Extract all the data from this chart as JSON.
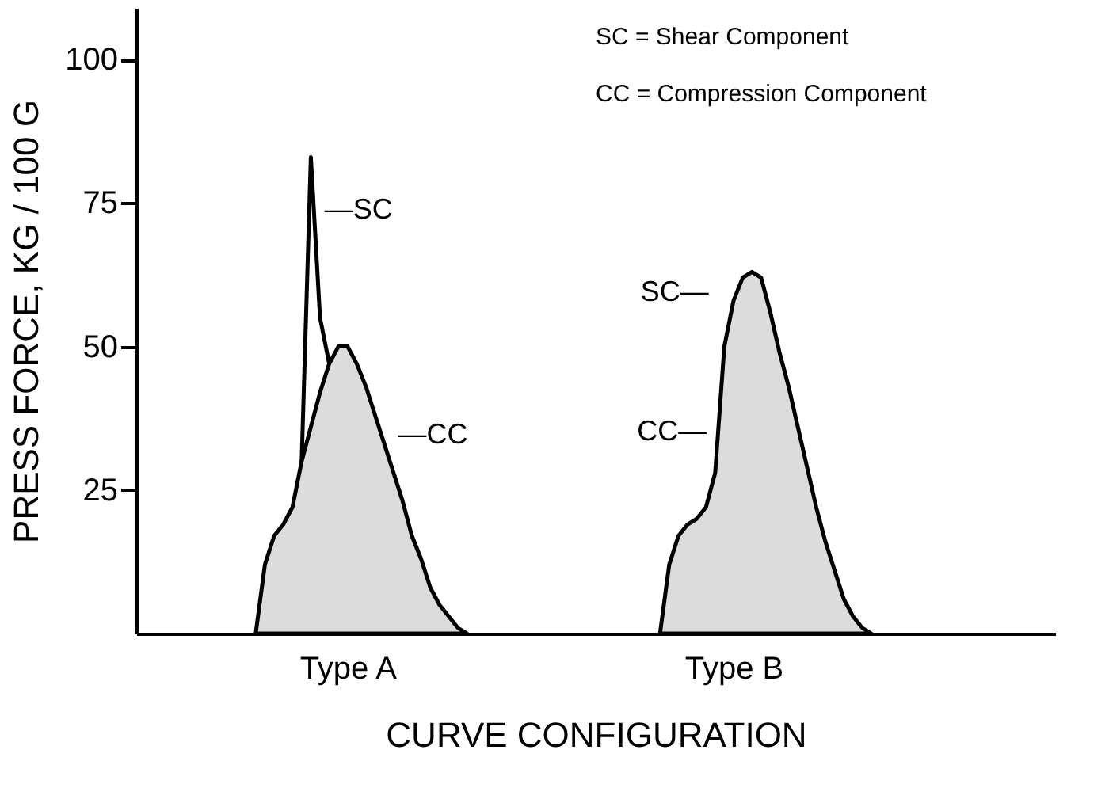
{
  "chart_data": {
    "type": "area",
    "xlabel": "CURVE CONFIGURATION",
    "ylabel": "PRESS FORCE, KG / 100 G",
    "categories": [
      null,
      null,
      null,
      null,
      null,
      null,
      null,
      null,
      null,
      null,
      null,
      null,
      null,
      null,
      null,
      null,
      null,
      null,
      null,
      null,
      null,
      null,
      null,
      "Type A",
      null,
      null,
      null,
      null,
      null,
      null,
      null,
      null,
      null,
      null,
      null,
      null,
      null,
      null,
      null,
      null,
      null,
      null,
      null,
      null,
      null,
      null,
      null,
      null,
      null,
      null,
      null,
      null,
      null,
      null,
      null,
      null,
      null,
      null,
      null,
      null,
      null,
      null,
      null,
      null,
      null,
      "Type B",
      null,
      null,
      null,
      null,
      null,
      null,
      null,
      null,
      null,
      null,
      null,
      null,
      null,
      null,
      null,
      null,
      null,
      null,
      null,
      null,
      null,
      null,
      null,
      null,
      null,
      null,
      null,
      null,
      null,
      null,
      null,
      null,
      null,
      null,
      null
    ],
    "ylim": [
      0,
      109
    ],
    "yticks": [
      25,
      50,
      75,
      100
    ],
    "grid": false,
    "series": [
      {
        "color": "#dcdcdc",
        "values": [
          null,
          null,
          null,
          null,
          null,
          null,
          null,
          null,
          null,
          null,
          null,
          null,
          null,
          0,
          12,
          17,
          19,
          22,
          30,
          36,
          42,
          47,
          50,
          50,
          47,
          43,
          38,
          33,
          28,
          23,
          17,
          13,
          8,
          5,
          3,
          1,
          0,
          null,
          null,
          null,
          null,
          null,
          null,
          null,
          null,
          null,
          null,
          null,
          null,
          null,
          null,
          null,
          null,
          null,
          null,
          null,
          null,
          null,
          null,
          null,
          null,
          null,
          null,
          null,
          null,
          null,
          null,
          null,
          null,
          null,
          null,
          null,
          null,
          null,
          null,
          null,
          null,
          null,
          null,
          null,
          null,
          null,
          null,
          null,
          null,
          null,
          null,
          null,
          null,
          null,
          null,
          null,
          null,
          null,
          null,
          null,
          null,
          null,
          null,
          null,
          null
        ]
      },
      {
        "type": "line",
        "color": "#000000",
        "values": [
          null,
          null,
          null,
          null,
          null,
          null,
          null,
          null,
          null,
          null,
          null,
          null,
          null,
          null,
          null,
          null,
          null,
          null,
          30,
          83,
          55,
          47,
          null,
          null,
          null,
          null,
          null,
          null,
          null,
          null,
          null,
          null,
          null,
          null,
          null,
          null,
          null,
          null,
          null,
          null,
          null,
          null,
          null,
          null,
          null,
          null,
          null,
          null,
          null,
          null,
          null,
          null,
          null,
          null,
          null,
          null,
          null,
          null,
          null,
          null,
          null,
          null,
          null,
          null,
          null,
          null,
          null,
          null,
          null,
          null,
          null,
          null,
          null,
          null,
          null,
          null,
          null,
          null,
          null,
          null,
          null,
          null,
          null,
          null,
          null,
          null,
          null,
          null,
          null,
          null,
          null,
          null,
          null,
          null,
          null,
          null,
          null,
          null,
          null,
          null,
          null
        ]
      },
      {
        "color": "#dcdcdc",
        "values": [
          null,
          null,
          null,
          null,
          null,
          null,
          null,
          null,
          null,
          null,
          null,
          null,
          null,
          null,
          null,
          null,
          null,
          null,
          null,
          null,
          null,
          null,
          null,
          null,
          null,
          null,
          null,
          null,
          null,
          null,
          null,
          null,
          null,
          null,
          null,
          null,
          null,
          null,
          null,
          null,
          null,
          null,
          null,
          null,
          null,
          null,
          null,
          null,
          null,
          null,
          null,
          null,
          null,
          null,
          null,
          null,
          null,
          0,
          12,
          17,
          19,
          20,
          22,
          28,
          50,
          58,
          62,
          63,
          62,
          56,
          49,
          43,
          36,
          29,
          22,
          16,
          11,
          6,
          3,
          1,
          0,
          null,
          null,
          null,
          null,
          null,
          null,
          null,
          null,
          null,
          null,
          null,
          null,
          null,
          null,
          null,
          null,
          null,
          null,
          null,
          null
        ]
      }
    ],
    "annotations": [
      "SC = Shear Component",
      "CC = Compression Component",
      "—SC",
      "—CC",
      "SC—",
      "CC—"
    ]
  }
}
